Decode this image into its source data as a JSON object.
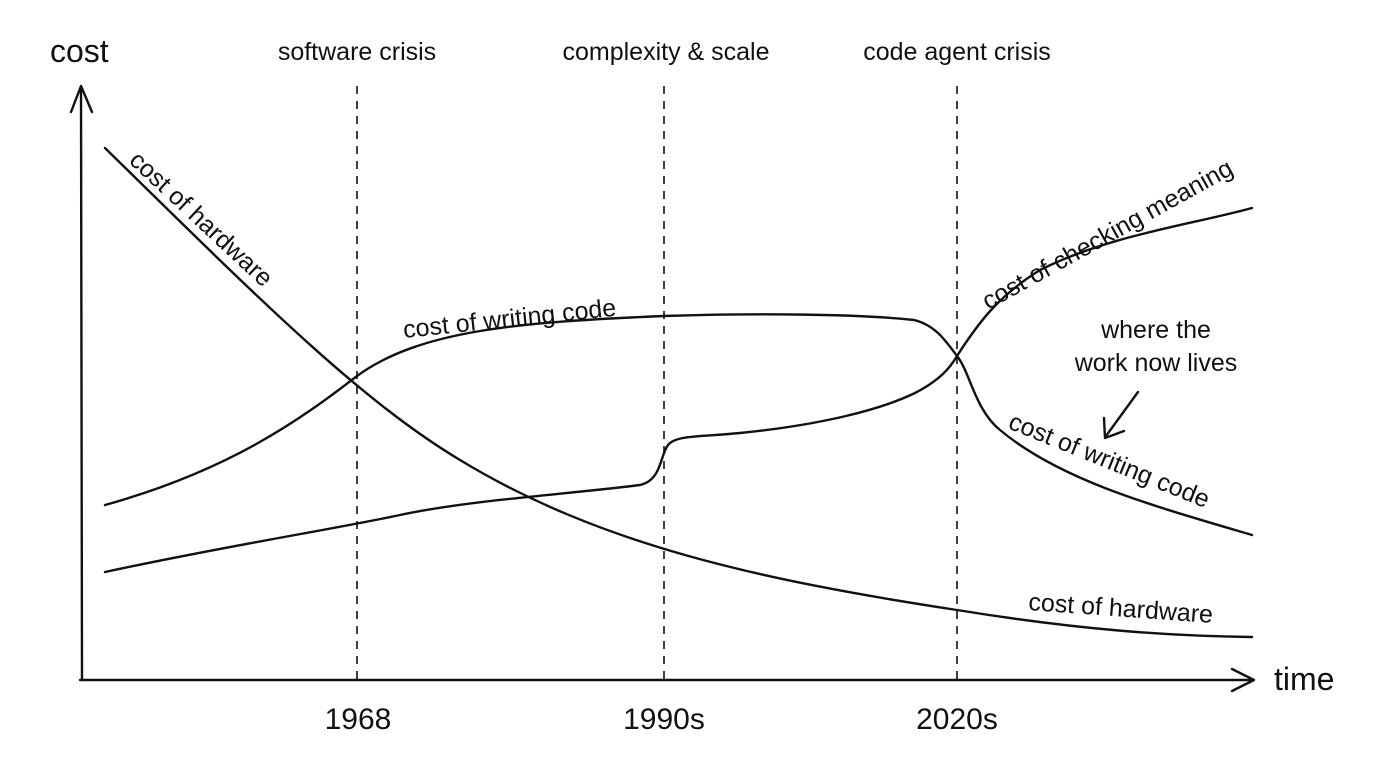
{
  "axes": {
    "y_label": "cost",
    "x_label": "time"
  },
  "eras": [
    {
      "heading": "software crisis",
      "tick": "1968"
    },
    {
      "heading": "complexity & scale",
      "tick": "1990s"
    },
    {
      "heading": "code agent crisis",
      "tick": "2020s"
    }
  ],
  "curve_labels": {
    "hardware_early": "cost of hardware",
    "writing_code_early": "cost of writing code",
    "checking_meaning": "cost of checking meaning",
    "writing_code_late": "cost of writing code",
    "hardware_late": "cost of hardware"
  },
  "annotation": {
    "line1": "where the",
    "line2": "work now lives"
  },
  "colors": {
    "ink": "#111111",
    "background": "#ffffff"
  }
}
